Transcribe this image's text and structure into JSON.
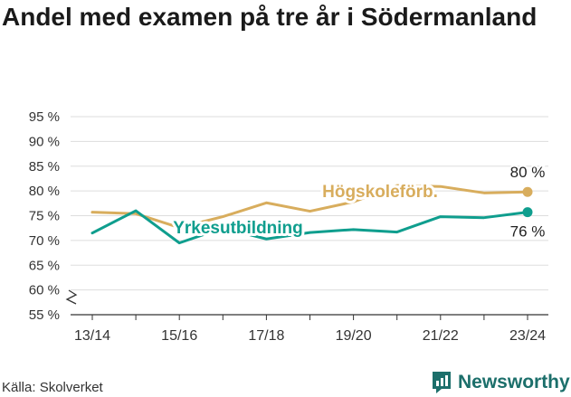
{
  "title": "Andel med examen på tre år i Södermanland",
  "source": "Källa: Skolverket",
  "brand": "Newsworthy",
  "colors": {
    "hogskole": "#d8ad5d",
    "yrkes": "#0f9e8e",
    "grid": "#dddddd",
    "axis": "#333333",
    "brand": "#1c6f6b"
  },
  "chart_data": {
    "type": "line",
    "title": "Andel med examen på tre år i Södermanland",
    "xlabel": "",
    "ylabel": "",
    "x": [
      "13/14",
      "14/15",
      "15/16",
      "16/17",
      "17/18",
      "18/19",
      "19/20",
      "20/21",
      "21/22",
      "22/23",
      "23/24"
    ],
    "x_tick_labels": [
      "13/14",
      "15/16",
      "17/18",
      "19/20",
      "21/22",
      "23/24"
    ],
    "ylim": [
      55,
      95
    ],
    "y_ticks": [
      55,
      60,
      65,
      70,
      75,
      80,
      85,
      90,
      95
    ],
    "y_tick_labels": [
      "55 %",
      "60 %",
      "65 %",
      "70 %",
      "75 %",
      "80 %",
      "85 %",
      "90 %",
      "95 %"
    ],
    "axis_break": true,
    "grid": "horizontal",
    "series": [
      {
        "name": "Högskoleförb.",
        "color": "#d8ad5d",
        "values": [
          75.7,
          75.4,
          72.6,
          74.8,
          77.6,
          75.9,
          77.8,
          81.1,
          80.9,
          79.6,
          79.8
        ],
        "end_label": "80 %"
      },
      {
        "name": "Yrkesutbildning",
        "color": "#0f9e8e",
        "values": [
          71.5,
          76.0,
          69.5,
          72.5,
          70.3,
          71.6,
          72.2,
          71.7,
          74.8,
          74.6,
          75.7
        ],
        "end_label": "76 %"
      }
    ]
  }
}
